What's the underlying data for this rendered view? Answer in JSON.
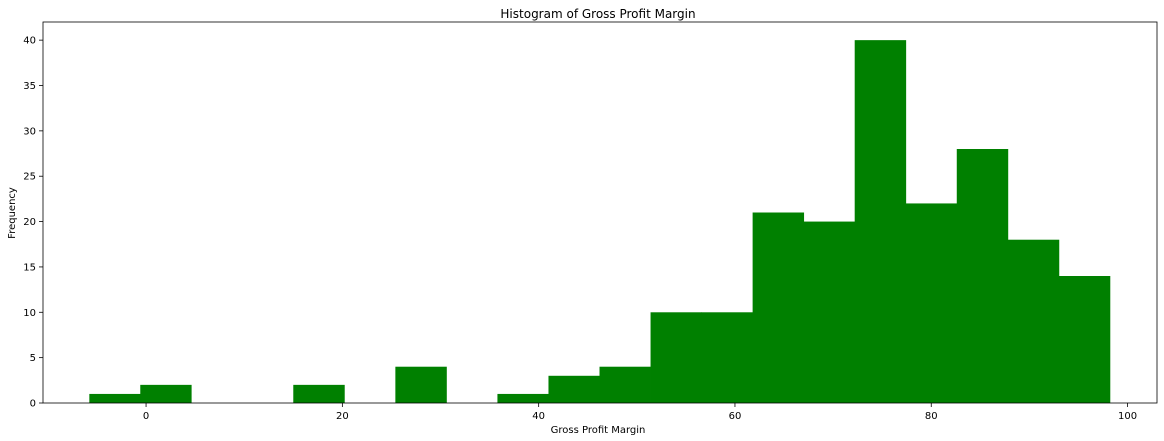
{
  "chart_data": {
    "type": "bar",
    "title": "Histogram of Gross Profit Margin",
    "xlabel": "Gross Profit Margin",
    "ylabel": "Frequency",
    "xlim": [
      -10.5,
      103
    ],
    "ylim": [
      0,
      42
    ],
    "bar_color": "#008000",
    "xticks": [
      0,
      20,
      40,
      60,
      80,
      100
    ],
    "yticks": [
      0,
      5,
      10,
      15,
      20,
      25,
      30,
      35,
      40
    ],
    "bins": [
      {
        "x0": -5.78,
        "x1": -0.59,
        "count": 1
      },
      {
        "x0": -0.59,
        "x1": 4.6,
        "count": 2
      },
      {
        "x0": 4.6,
        "x1": 9.8,
        "count": 0
      },
      {
        "x0": 9.8,
        "x1": 15.0,
        "count": 0
      },
      {
        "x0": 15.0,
        "x1": 20.2,
        "count": 2
      },
      {
        "x0": 20.2,
        "x1": 25.4,
        "count": 0
      },
      {
        "x0": 25.4,
        "x1": 30.6,
        "count": 4
      },
      {
        "x0": 30.6,
        "x1": 35.8,
        "count": 0
      },
      {
        "x0": 35.8,
        "x1": 41.0,
        "count": 1
      },
      {
        "x0": 41.0,
        "x1": 46.2,
        "count": 3
      },
      {
        "x0": 46.2,
        "x1": 51.4,
        "count": 4
      },
      {
        "x0": 51.4,
        "x1": 56.6,
        "count": 10
      },
      {
        "x0": 56.6,
        "x1": 61.8,
        "count": 10
      },
      {
        "x0": 61.8,
        "x1": 67.0,
        "count": 21
      },
      {
        "x0": 67.0,
        "x1": 72.2,
        "count": 20
      },
      {
        "x0": 72.2,
        "x1": 77.4,
        "count": 40
      },
      {
        "x0": 77.4,
        "x1": 82.6,
        "count": 22
      },
      {
        "x0": 82.6,
        "x1": 87.8,
        "count": 28
      },
      {
        "x0": 87.8,
        "x1": 93.0,
        "count": 18
      },
      {
        "x0": 93.0,
        "x1": 98.2,
        "count": 14
      }
    ],
    "grid": false,
    "legend": "none"
  }
}
